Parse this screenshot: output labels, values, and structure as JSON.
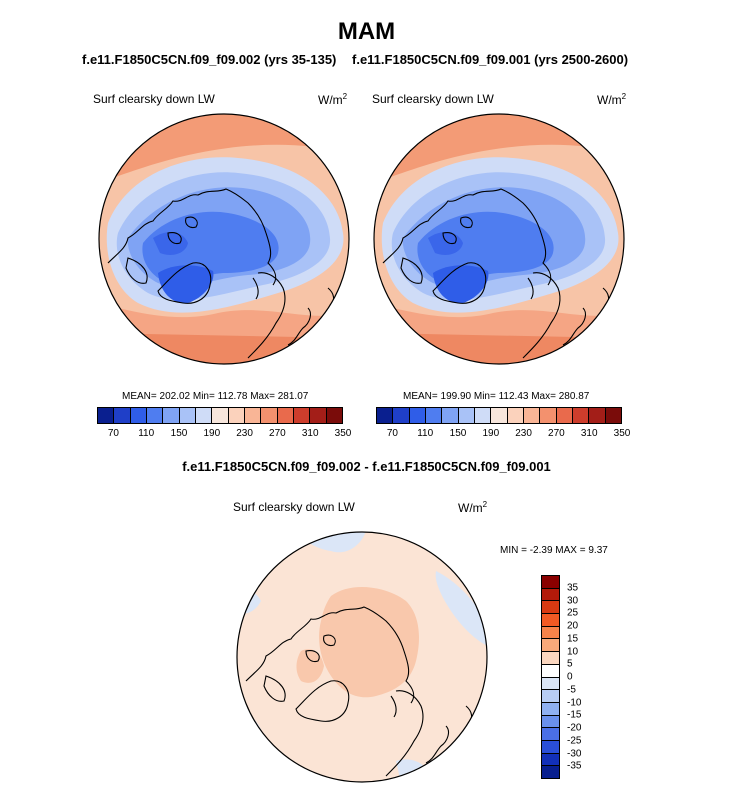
{
  "title": "MAM",
  "panels": [
    {
      "case_title": "f.e11.F1850C5CN.f09_f09.002 (yrs 35-135)",
      "variable": "Surf clearsky down LW",
      "units": "W/m",
      "units_exp": "2",
      "stats_text": "MEAN= 202.02  Min= 112.78  Max= 281.07"
    },
    {
      "case_title": "f.e11.F1850C5CN.f09_f09.001 (yrs 2500-2600)",
      "variable": "Surf clearsky down LW",
      "units": "W/m",
      "units_exp": "2",
      "stats_text": "MEAN= 199.90  Min= 112.43  Max= 280.87"
    }
  ],
  "colorbar": {
    "colors": [
      "#0a1f8f",
      "#1f3fc8",
      "#2f5de8",
      "#4f7df0",
      "#7fa3f4",
      "#a9c2f7",
      "#cfdcf7",
      "#f7e6dc",
      "#fbd2bc",
      "#f9b596",
      "#f3916e",
      "#e96a4c",
      "#cd3d2c",
      "#a31e18",
      "#7a0c0a"
    ],
    "tick_labels": [
      "70",
      "110",
      "150",
      "190",
      "230",
      "270",
      "310",
      "350"
    ]
  },
  "difference": {
    "title": "f.e11.F1850C5CN.f09_f09.002 - f.e11.F1850C5CN.f09_f09.001",
    "variable": "Surf clearsky down LW",
    "units": "W/m",
    "units_exp": "2",
    "min_max_text": "MIN =  -2.39 MAX =   9.37",
    "colorbar_colors": [
      "#8a0000",
      "#b21a0a",
      "#d93a12",
      "#f25a24",
      "#f7834a",
      "#f9a97a",
      "#fbd6bf",
      "#ffffff",
      "#dbe6f7",
      "#b8cdf4",
      "#8fb0f1",
      "#6a90ec",
      "#4a6fe6",
      "#2a4fd8",
      "#1230b8",
      "#081f8f"
    ],
    "tick_labels": [
      "35",
      "30",
      "25",
      "20",
      "15",
      "10",
      "5",
      "0",
      "-5",
      "-10",
      "-15",
      "-20",
      "-25",
      "-30",
      "-35"
    ]
  }
}
